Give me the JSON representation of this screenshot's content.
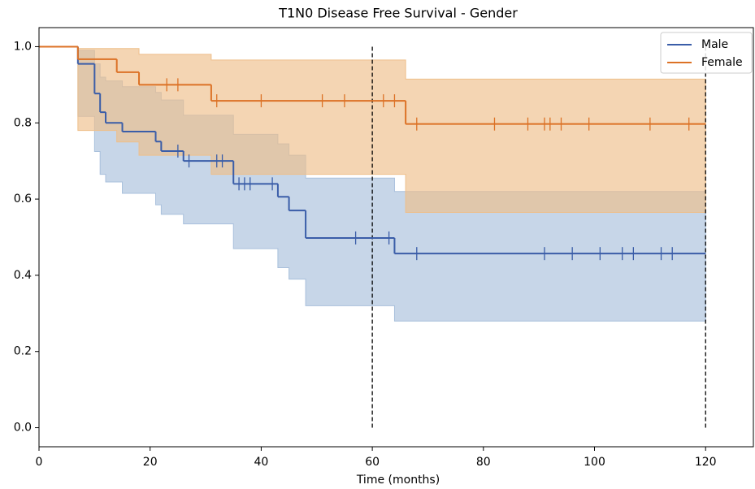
{
  "chart_data": {
    "type": "survival",
    "title": "T1N0 Disease Free Survival - Gender",
    "xlabel": "Time (months)",
    "xlim": [
      0,
      128.6
    ],
    "ylim": [
      -0.05,
      1.05
    ],
    "xticks": [
      0,
      20,
      40,
      60,
      80,
      100,
      120
    ],
    "yticks": [
      {
        "value": 0,
        "label": "0.0"
      },
      {
        "value": 0.2,
        "label": "0.2"
      },
      {
        "value": 0.4,
        "label": "0.4"
      },
      {
        "value": 0.6,
        "label": "0.6"
      },
      {
        "value": 0.8,
        "label": "0.8"
      },
      {
        "value": 1,
        "label": "1.0"
      }
    ],
    "vlines": [
      60,
      120
    ],
    "followup_end": 120,
    "legend": "upper right",
    "series": [
      {
        "name": "Male",
        "color": "#3a5da8",
        "band_color": "#a9c0dc",
        "x": [
          0,
          7,
          10,
          11,
          12,
          15,
          21,
          22,
          26,
          35,
          43,
          45,
          48,
          64
        ],
        "values": [
          1.0,
          0.955,
          0.877,
          0.828,
          0.8,
          0.777,
          0.751,
          0.726,
          0.7,
          0.64,
          0.606,
          0.57,
          0.498,
          0.457
        ],
        "lower": [
          1.0,
          0.817,
          0.725,
          0.665,
          0.645,
          0.615,
          0.585,
          0.56,
          0.535,
          0.47,
          0.42,
          0.39,
          0.32,
          0.28
        ],
        "upper": [
          1.0,
          0.99,
          0.955,
          0.92,
          0.91,
          0.895,
          0.88,
          0.86,
          0.82,
          0.77,
          0.745,
          0.715,
          0.655,
          0.62
        ],
        "censor_x": [
          25,
          27,
          32,
          33,
          36,
          37,
          38,
          42,
          57,
          63,
          68,
          91,
          96,
          101,
          105,
          107,
          112,
          114
        ],
        "censor_values": [
          0.726,
          0.7,
          0.7,
          0.7,
          0.64,
          0.64,
          0.64,
          0.64,
          0.498,
          0.498,
          0.457,
          0.457,
          0.457,
          0.457,
          0.457,
          0.457,
          0.457,
          0.457
        ]
      },
      {
        "name": "Female",
        "color": "#dc7226",
        "band_color": "#eebf8a",
        "x": [
          0,
          7,
          14,
          18,
          31,
          66
        ],
        "values": [
          1.0,
          0.967,
          0.933,
          0.9,
          0.858,
          0.797
        ],
        "lower": [
          1.0,
          0.78,
          0.75,
          0.715,
          0.665,
          0.565
        ],
        "upper": [
          1.0,
          0.995,
          0.995,
          0.98,
          0.965,
          0.915
        ],
        "censor_x": [
          23,
          25,
          32,
          40,
          51,
          55,
          62,
          64,
          68,
          82,
          88,
          91,
          92,
          94,
          99,
          110,
          117
        ],
        "censor_values": [
          0.9,
          0.9,
          0.858,
          0.858,
          0.858,
          0.858,
          0.858,
          0.858,
          0.797,
          0.797,
          0.797,
          0.797,
          0.797,
          0.797,
          0.797,
          0.797,
          0.797
        ]
      }
    ]
  }
}
